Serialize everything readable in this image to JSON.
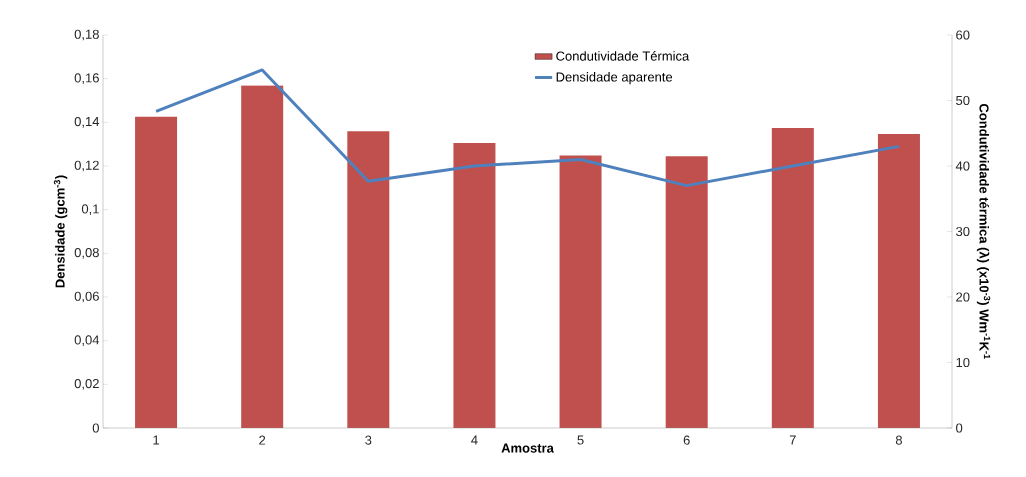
{
  "chart_data": {
    "type": "bar",
    "xlabel": "Amostra",
    "ylabel": "Densidade (gcm$^{-3}$)",
    "y2label": "Condutividade térmica (λ) (x10$^{-3}$) Wm$^{-1}$K$^{-1}$",
    "categories": [
      "1",
      "2",
      "3",
      "4",
      "5",
      "6",
      "7",
      "8"
    ],
    "series": [
      {
        "name": "Condutividade Térmica",
        "axis": "y2",
        "color": "#c0504d",
        "values": [
          47.5,
          52.3,
          45.3,
          43.5,
          41.6,
          41.5,
          45.8,
          44.9
        ]
      },
      {
        "name": "Densidade aparente",
        "type": "line",
        "axis": "y",
        "color": "#4f81bd",
        "values": [
          0.145,
          0.164,
          0.113,
          0.12,
          0.123,
          0.111,
          0.12,
          0.129
        ]
      }
    ],
    "ylim": [
      0,
      0.18
    ],
    "yticks": [
      0,
      {
        "value": 0.02,
        "label": "0,02"
      },
      {
        "value": 0.04,
        "label": "0,04"
      },
      {
        "value": 0.06,
        "label": "0,06"
      },
      {
        "value": 0.08,
        "label": "0,08"
      },
      {
        "value": 0.1,
        "label": "0,1"
      },
      {
        "value": 0.12,
        "label": "0,12"
      },
      {
        "value": 0.14,
        "label": "0,14"
      },
      {
        "value": 0.16,
        "label": "0,16"
      },
      {
        "value": 0.18,
        "label": "0,18"
      }
    ],
    "y2lim": [
      0,
      60
    ],
    "y2ticks": [
      0,
      10,
      20,
      30,
      40,
      50,
      60
    ],
    "legend": "top",
    "grid": false,
    "marker": "none",
    "line_style": "solid"
  }
}
